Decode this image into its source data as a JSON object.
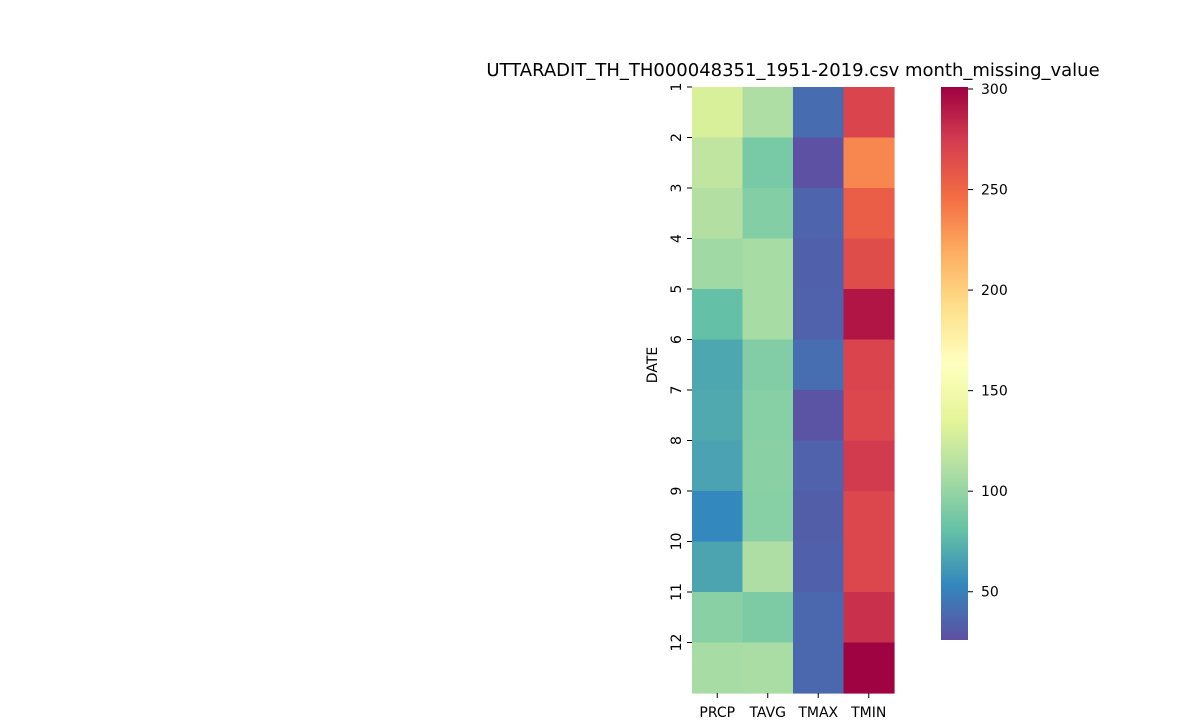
{
  "chart_data": {
    "type": "heatmap",
    "title": "UTTARADIT_TH_TH000048351_1951-2019.csv month_missing_value",
    "ylabel": "DATE",
    "xlabel": "",
    "x_categories": [
      "PRCP",
      "TAVG",
      "TMAX",
      "TMIN"
    ],
    "y_categories": [
      "1",
      "2",
      "3",
      "4",
      "5",
      "6",
      "7",
      "8",
      "9",
      "10",
      "11",
      "12"
    ],
    "values": [
      [
        130,
        110,
        40,
        270
      ],
      [
        118,
        88,
        27,
        235
      ],
      [
        112,
        93,
        36,
        255
      ],
      [
        104,
        107,
        34,
        265
      ],
      [
        80,
        107,
        35,
        292
      ],
      [
        68,
        92,
        41,
        270
      ],
      [
        69,
        94,
        28,
        268
      ],
      [
        66,
        95,
        35,
        275
      ],
      [
        54,
        94,
        33,
        268
      ],
      [
        67,
        110,
        34,
        268
      ],
      [
        95,
        90,
        38,
        280
      ],
      [
        107,
        108,
        38,
        300
      ]
    ],
    "colorbar": {
      "colormap": "Spectral_r",
      "vmin": 26,
      "vmax": 301,
      "ticks": [
        50,
        100,
        150,
        200,
        250,
        300
      ]
    }
  }
}
